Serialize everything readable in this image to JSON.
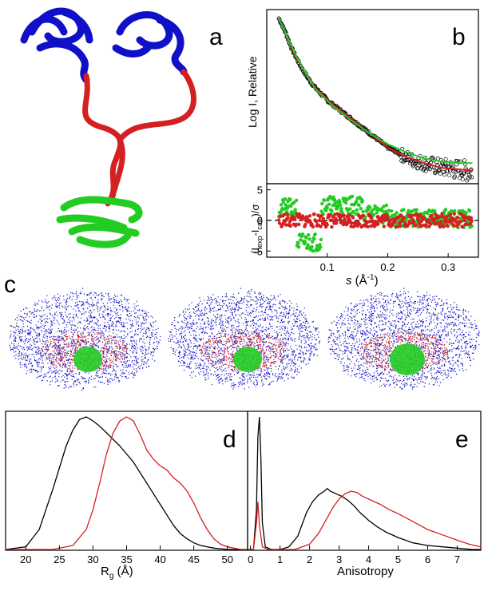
{
  "panels": {
    "a": "a",
    "b": "b",
    "c": "c",
    "d": "d",
    "e": "e"
  },
  "colors": {
    "blue": "#1010c8",
    "red": "#d42020",
    "green": "#22cc22",
    "black": "#000000"
  },
  "chart_data": [
    {
      "type": "scatter",
      "panel": "b-top",
      "ylabel": "Log I, Relative",
      "xlim": [
        0.0,
        0.35
      ],
      "series": [
        {
          "name": "",
          "kind": "points",
          "x": [
            0.02,
            0.03,
            0.04,
            0.05,
            0.06,
            0.07,
            0.08,
            0.09,
            0.1,
            0.11,
            0.12,
            0.13,
            0.14,
            0.15,
            0.16,
            0.17,
            0.18,
            0.19,
            0.2,
            0.21,
            0.22,
            0.23,
            0.24,
            0.25,
            0.26,
            0.27,
            0.28,
            0.29,
            0.3,
            0.31,
            0.32,
            0.33,
            0.34
          ],
          "y": [
            1.0,
            0.92,
            0.82,
            0.74,
            0.67,
            0.61,
            0.56,
            0.52,
            0.48,
            0.45,
            0.42,
            0.39,
            0.36,
            0.33,
            0.3,
            0.27,
            0.24,
            0.21,
            0.18,
            0.16,
            0.14,
            0.12,
            0.1,
            0.09,
            0.08,
            0.07,
            0.06,
            0.05,
            0.05,
            0.04,
            0.04,
            0.03,
            0.03
          ]
        },
        {
          "name": "",
          "kind": "line",
          "color": "red",
          "x": [
            0.02,
            0.05,
            0.08,
            0.11,
            0.14,
            0.17,
            0.2,
            0.23,
            0.26,
            0.29,
            0.32,
            0.34
          ],
          "y": [
            1.0,
            0.74,
            0.56,
            0.45,
            0.36,
            0.27,
            0.18,
            0.12,
            0.08,
            0.05,
            0.04,
            0.03
          ]
        },
        {
          "name": "",
          "kind": "line",
          "color": "green",
          "x": [
            0.02,
            0.05,
            0.08,
            0.11,
            0.14,
            0.17,
            0.2,
            0.23,
            0.26,
            0.29,
            0.32,
            0.34
          ],
          "y": [
            1.0,
            0.75,
            0.55,
            0.44,
            0.35,
            0.27,
            0.2,
            0.15,
            0.11,
            0.09,
            0.08,
            0.08
          ]
        }
      ]
    },
    {
      "type": "scatter",
      "panel": "b-bottom",
      "ylabel": "(I",
      "ylabel_sub1": "exp",
      "ylabel_mid": "-I",
      "ylabel_sub2": "calc",
      "ylabel_end": ")/σ",
      "xlabel_italic": "s",
      "xlabel_rest": " (Å",
      "xlabel_sup": "-1",
      "xlabel_close": ")",
      "xlim": [
        0.0,
        0.35
      ],
      "ylim": [
        -6,
        6
      ],
      "xticks": [
        0.1,
        0.2,
        0.3
      ],
      "xticklabels": [
        "0.1",
        "0.2",
        "0.3"
      ],
      "yticks": [
        5,
        0,
        -5
      ],
      "yticklabels": [
        "5",
        "0",
        "-5"
      ]
    },
    {
      "type": "line",
      "panel": "d",
      "xlabel": "R",
      "xlabel_sub": "g",
      "xlabel_unit": " (Å)",
      "xlim": [
        17,
        53
      ],
      "xticks": [
        20,
        25,
        30,
        35,
        40,
        45,
        50
      ],
      "xticklabels": [
        "20",
        "25",
        "30",
        "35",
        "40",
        "45",
        "50"
      ],
      "series": [
        {
          "name": "",
          "color": "black",
          "x": [
            17,
            20,
            22,
            24,
            26,
            27,
            28,
            29,
            30,
            31,
            32,
            33,
            34,
            35,
            36,
            37,
            38,
            39,
            40,
            41,
            42,
            43,
            44,
            45,
            46,
            47,
            48,
            50,
            52,
            53
          ],
          "y": [
            0.0,
            0.02,
            0.15,
            0.45,
            0.78,
            0.9,
            0.98,
            1.0,
            0.97,
            0.93,
            0.88,
            0.83,
            0.78,
            0.72,
            0.66,
            0.58,
            0.5,
            0.42,
            0.34,
            0.26,
            0.18,
            0.12,
            0.08,
            0.05,
            0.03,
            0.02,
            0.01,
            0.0,
            0.0,
            0.0
          ]
        },
        {
          "name": "",
          "color": "red",
          "x": [
            17,
            24,
            27,
            29,
            30,
            31,
            32,
            33,
            34,
            35,
            36,
            37,
            38,
            39,
            40,
            41,
            42,
            43,
            44,
            45,
            46,
            47,
            48,
            49,
            50,
            52,
            53
          ],
          "y": [
            0.0,
            0.0,
            0.03,
            0.15,
            0.3,
            0.5,
            0.72,
            0.88,
            0.97,
            1.0,
            0.97,
            0.87,
            0.75,
            0.68,
            0.63,
            0.6,
            0.54,
            0.5,
            0.44,
            0.35,
            0.24,
            0.15,
            0.08,
            0.04,
            0.02,
            0.0,
            0.0
          ]
        }
      ]
    },
    {
      "type": "line",
      "panel": "e",
      "xlabel": "Anisotropy",
      "xlim": [
        -0.1,
        7.8
      ],
      "xticks": [
        0,
        1,
        2,
        3,
        4,
        5,
        6,
        7
      ],
      "xticklabels": [
        "0",
        "1",
        "2",
        "3",
        "4",
        "5",
        "6",
        "7"
      ],
      "series": [
        {
          "name": "",
          "color": "black",
          "x": [
            -0.1,
            0.1,
            0.2,
            0.25,
            0.3,
            0.35,
            0.4,
            0.5,
            0.7,
            1.0,
            1.3,
            1.6,
            1.9,
            2.1,
            2.3,
            2.5,
            2.6,
            2.7,
            2.9,
            3.1,
            3.3,
            3.5,
            3.7,
            4.0,
            4.3,
            4.6,
            5.0,
            5.5,
            6.0,
            6.5,
            7.0,
            7.5,
            7.8
          ],
          "y": [
            0.0,
            0.0,
            0.3,
            0.85,
            1.0,
            0.7,
            0.2,
            0.02,
            0.0,
            0.0,
            0.02,
            0.1,
            0.28,
            0.36,
            0.41,
            0.44,
            0.46,
            0.44,
            0.42,
            0.4,
            0.37,
            0.33,
            0.28,
            0.22,
            0.17,
            0.13,
            0.09,
            0.05,
            0.03,
            0.02,
            0.01,
            0.0,
            0.0
          ]
        },
        {
          "name": "",
          "color": "red",
          "x": [
            -0.1,
            0.1,
            0.2,
            0.25,
            0.3,
            0.4,
            0.6,
            1.0,
            1.5,
            2.0,
            2.3,
            2.6,
            2.8,
            3.0,
            3.2,
            3.4,
            3.6,
            3.8,
            4.1,
            4.4,
            4.7,
            5.0,
            5.5,
            6.0,
            6.5,
            7.0,
            7.4,
            7.8
          ],
          "y": [
            0.0,
            0.0,
            0.2,
            0.36,
            0.18,
            0.02,
            0.0,
            0.0,
            0.0,
            0.04,
            0.12,
            0.24,
            0.32,
            0.38,
            0.42,
            0.44,
            0.43,
            0.4,
            0.37,
            0.34,
            0.3,
            0.27,
            0.21,
            0.15,
            0.11,
            0.07,
            0.04,
            0.02
          ]
        }
      ]
    }
  ]
}
